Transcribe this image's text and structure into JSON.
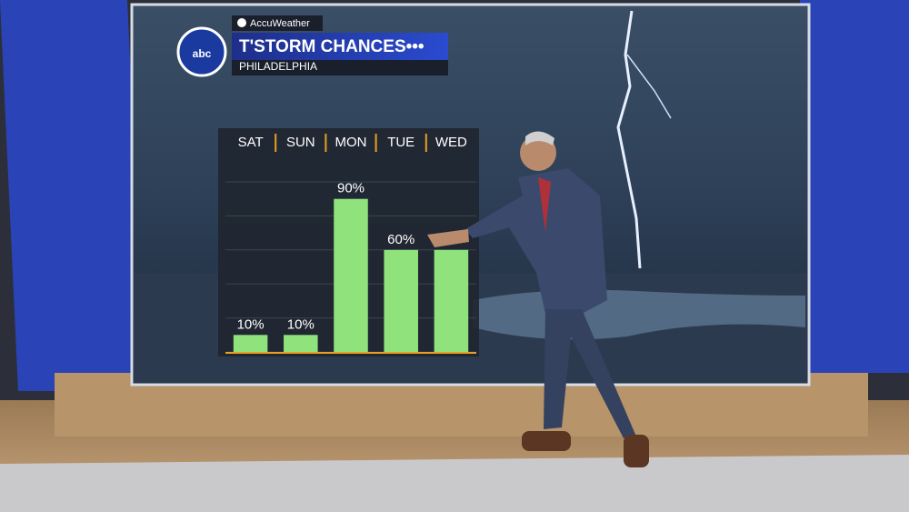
{
  "brand": "AccuWeather",
  "logo": "abc",
  "chart_data": {
    "type": "bar",
    "title": "T'STORM CHANCES•••",
    "subtitle": "PHILADELPHIA",
    "categories": [
      "SAT",
      "SUN",
      "MON",
      "TUE",
      "WED"
    ],
    "values": [
      10,
      10,
      90,
      60,
      60
    ],
    "value_labels": [
      "10%",
      "10%",
      "90%",
      "60%",
      null
    ],
    "color": "#8fe27c",
    "ylim": [
      0,
      100
    ],
    "grid": true
  }
}
